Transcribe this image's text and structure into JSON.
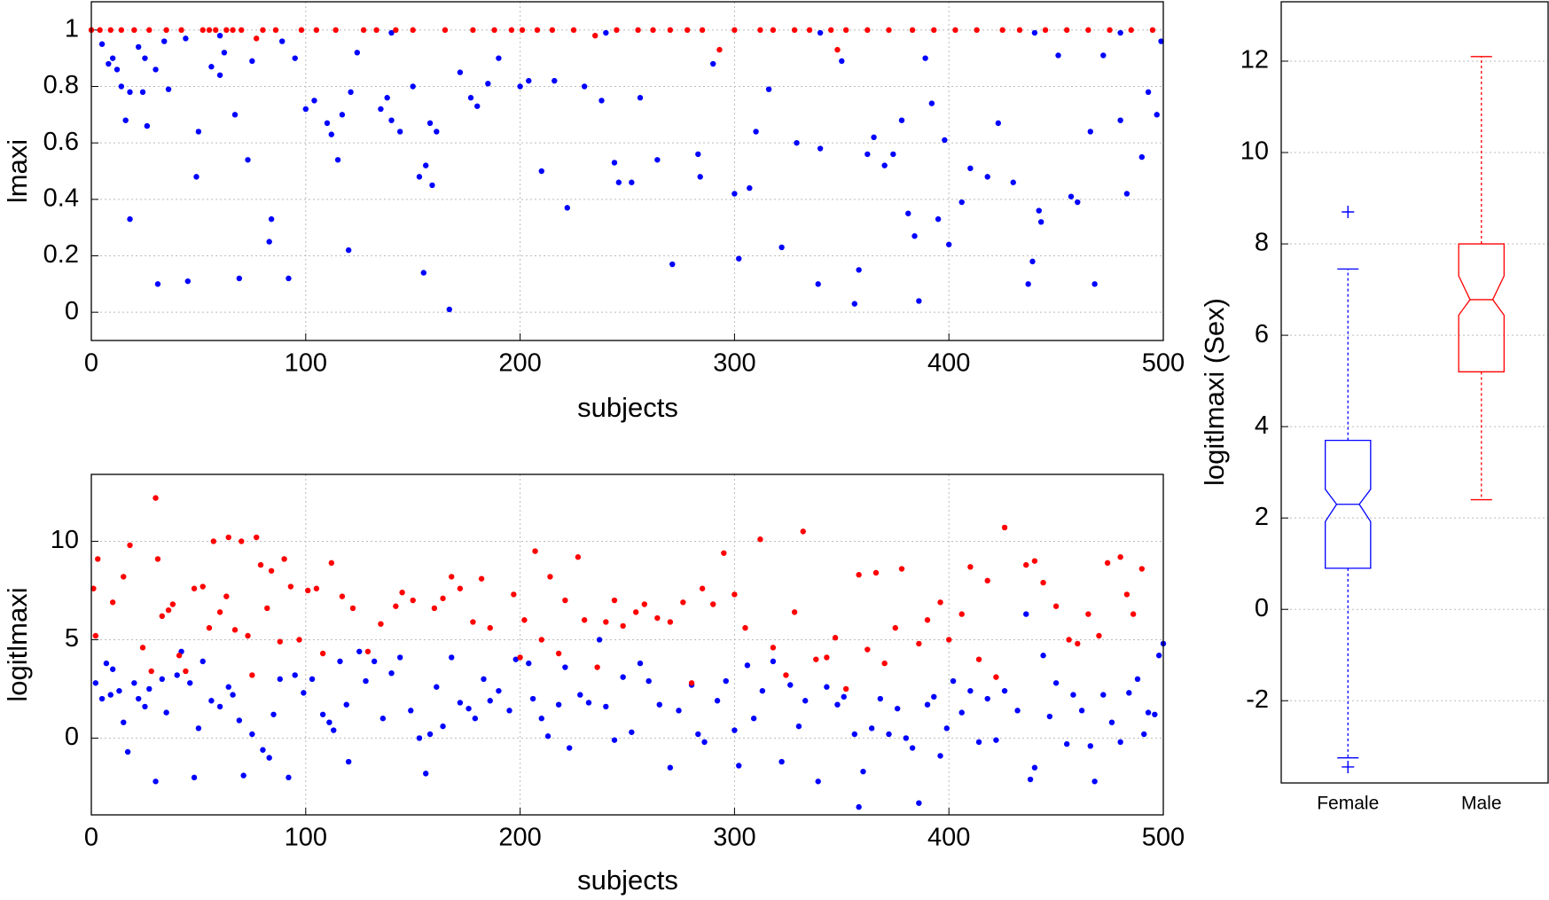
{
  "chart_data": [
    {
      "type": "scatter",
      "xlabel": "subjects",
      "ylabel": "lmaxi",
      "xlim": [
        0,
        500
      ],
      "ylim": [
        -0.1,
        1.1
      ],
      "xticks": [
        0,
        100,
        200,
        300,
        400,
        500
      ],
      "yticks": [
        0,
        0.2,
        0.4,
        0.6,
        0.8,
        1
      ],
      "grid": true,
      "series": [
        {
          "color": "#0000ff",
          "x": [
            5,
            8,
            10,
            12,
            14,
            16,
            18,
            18,
            22,
            24,
            25,
            26,
            30,
            31,
            34,
            36,
            44,
            45,
            49,
            50,
            56,
            60,
            62,
            67,
            69,
            73,
            75,
            83,
            84,
            89,
            92,
            95,
            100,
            104,
            110,
            112,
            115,
            117,
            120,
            121,
            124,
            135,
            138,
            140,
            144,
            150,
            153,
            155,
            156,
            158,
            159,
            161,
            167,
            172,
            177,
            180,
            185,
            190,
            200,
            204,
            210,
            216,
            222,
            230,
            238,
            244,
            246,
            252,
            256,
            264,
            271,
            283,
            284,
            290,
            300,
            302,
            307,
            310,
            316,
            322,
            329,
            339,
            340,
            350,
            356,
            358,
            362,
            365,
            370,
            374,
            378,
            381,
            384,
            386,
            389,
            392,
            395,
            398,
            400,
            406,
            410,
            418,
            423,
            430,
            437,
            439,
            442,
            443,
            451,
            457,
            460,
            466,
            468,
            472,
            480,
            483,
            490,
            493,
            497,
            499,
            60,
            140,
            240,
            340,
            440,
            480
          ],
          "values": [
            0.95,
            0.88,
            0.9,
            0.86,
            0.8,
            0.68,
            0.78,
            0.33,
            0.94,
            0.78,
            0.9,
            0.66,
            0.86,
            0.1,
            0.96,
            0.79,
            0.97,
            0.11,
            0.48,
            0.64,
            0.87,
            0.84,
            0.92,
            0.7,
            0.12,
            0.54,
            0.89,
            0.25,
            0.33,
            0.96,
            0.12,
            0.9,
            0.72,
            0.75,
            0.67,
            0.63,
            0.54,
            0.7,
            0.22,
            0.78,
            0.92,
            0.72,
            0.76,
            0.68,
            0.64,
            0.8,
            0.48,
            0.14,
            0.52,
            0.67,
            0.45,
            0.64,
            0.01,
            0.85,
            0.76,
            0.73,
            0.81,
            0.9,
            0.8,
            0.82,
            0.5,
            0.82,
            0.37,
            0.8,
            0.75,
            0.53,
            0.46,
            0.46,
            0.76,
            0.54,
            0.17,
            0.56,
            0.48,
            0.88,
            0.42,
            0.19,
            0.44,
            0.64,
            0.79,
            0.23,
            0.6,
            0.1,
            0.58,
            0.89,
            0.03,
            0.15,
            0.56,
            0.62,
            0.52,
            0.56,
            0.68,
            0.35,
            0.27,
            0.04,
            0.9,
            0.74,
            0.33,
            0.61,
            0.24,
            0.39,
            0.51,
            0.48,
            0.67,
            0.46,
            0.1,
            0.18,
            0.36,
            0.32,
            0.91,
            0.41,
            0.39,
            0.64,
            0.1,
            0.91,
            0.68,
            0.42,
            0.55,
            0.78,
            0.7,
            0.96,
            0.98,
            0.99,
            0.99,
            0.99,
            0.99,
            0.99
          ]
        },
        {
          "color": "#ff0000",
          "x": [
            0,
            4,
            9,
            14,
            20,
            27,
            35,
            42,
            52,
            55,
            58,
            63,
            66,
            70,
            77,
            80,
            86,
            98,
            105,
            114,
            127,
            133,
            142,
            150,
            165,
            178,
            188,
            196,
            201,
            208,
            215,
            225,
            235,
            245,
            255,
            262,
            270,
            278,
            285,
            293,
            300,
            312,
            318,
            328,
            335,
            345,
            348,
            352,
            362,
            372,
            383,
            393,
            403,
            413,
            425,
            433,
            445,
            455,
            465,
            475,
            485,
            495
          ],
          "values": [
            1,
            1,
            1,
            1,
            1,
            1,
            1,
            1,
            1,
            1,
            1,
            1,
            1,
            1,
            0.97,
            1,
            1,
            1,
            1,
            1,
            1,
            1,
            1,
            1,
            1,
            1,
            1,
            1,
            1,
            1,
            1,
            1,
            0.98,
            1,
            1,
            1,
            1,
            1,
            1,
            0.93,
            1,
            1,
            1,
            1,
            1,
            1,
            0.93,
            1,
            1,
            1,
            1,
            1,
            1,
            1,
            1,
            1,
            1,
            1,
            1,
            1,
            1,
            1
          ]
        }
      ]
    },
    {
      "type": "scatter",
      "xlabel": "subjects",
      "ylabel": "logitlmaxi",
      "xlim": [
        0,
        500
      ],
      "ylim": [
        -3.9,
        13.4
      ],
      "xticks": [
        0,
        100,
        200,
        300,
        400,
        500
      ],
      "yticks": [
        0,
        5,
        10
      ],
      "grid": true,
      "series": [
        {
          "color": "#0000ff",
          "x": [
            2,
            5,
            7,
            9,
            10,
            13,
            15,
            17,
            20,
            22,
            25,
            27,
            30,
            33,
            35,
            40,
            42,
            46,
            48,
            50,
            52,
            56,
            60,
            64,
            66,
            69,
            71,
            75,
            80,
            83,
            85,
            88,
            92,
            95,
            99,
            103,
            108,
            111,
            113,
            116,
            119,
            120,
            125,
            128,
            132,
            136,
            140,
            144,
            149,
            153,
            156,
            158,
            161,
            164,
            168,
            172,
            176,
            179,
            183,
            186,
            190,
            195,
            198,
            204,
            206,
            210,
            213,
            218,
            221,
            223,
            228,
            232,
            237,
            240,
            244,
            248,
            252,
            256,
            260,
            265,
            270,
            274,
            280,
            283,
            286,
            292,
            296,
            300,
            302,
            306,
            309,
            313,
            318,
            322,
            326,
            330,
            333,
            339,
            343,
            348,
            351,
            356,
            358,
            360,
            364,
            368,
            372,
            376,
            380,
            383,
            386,
            390,
            393,
            396,
            399,
            402,
            406,
            410,
            414,
            418,
            422,
            426,
            432,
            436,
            438,
            440,
            444,
            447,
            450,
            455,
            458,
            462,
            466,
            468,
            472,
            476,
            480,
            484,
            488,
            491,
            493,
            496,
            498,
            500
          ],
          "values": [
            2.8,
            2,
            3.8,
            2.2,
            3.5,
            2.4,
            0.8,
            -0.7,
            2.8,
            2,
            1.6,
            2.5,
            -2.2,
            3,
            1.3,
            3.2,
            4.4,
            2.8,
            -2,
            0.5,
            3.9,
            1.9,
            1.6,
            2.6,
            2.2,
            0.9,
            -1.9,
            0.2,
            -0.6,
            -1,
            1.2,
            3,
            -2,
            3.2,
            2.3,
            3,
            1.2,
            0.8,
            0.4,
            3.9,
            1.7,
            -1.2,
            4.4,
            2.9,
            3.9,
            1,
            3.3,
            4.1,
            1.4,
            0,
            -1.8,
            0.2,
            2.6,
            0.6,
            4.1,
            1.8,
            1.5,
            1,
            3,
            1.9,
            2.4,
            1.4,
            4,
            3.8,
            2,
            1,
            0.1,
            1.7,
            3.6,
            -0.5,
            2.2,
            1.8,
            5,
            1.6,
            -0.1,
            3.1,
            0.3,
            3.8,
            2.9,
            1.7,
            -1.5,
            1.4,
            2.7,
            0.2,
            -0.2,
            1.9,
            2.9,
            0.4,
            -1.4,
            3.7,
            1,
            2.4,
            3.9,
            -1.2,
            2.7,
            0.6,
            1.9,
            -2.2,
            2.6,
            1.7,
            2.1,
            0.2,
            -3.5,
            -1.7,
            0.5,
            2,
            0.2,
            1.5,
            0,
            -0.5,
            -3.3,
            1.7,
            2.1,
            -0.9,
            0.5,
            2.9,
            1.3,
            2.4,
            -0.2,
            2,
            -0.1,
            2.4,
            1.4,
            6.3,
            -2.1,
            -1.5,
            4.2,
            1.1,
            2.8,
            -0.3,
            2.2,
            1.4,
            -0.4,
            -2.2,
            2.2,
            0.8,
            -0.2,
            2.3,
            3,
            0.2,
            1.3,
            1.2,
            4.2,
            4.8
          ]
        },
        {
          "color": "#ff0000",
          "x": [
            1,
            2,
            3,
            10,
            15,
            18,
            24,
            28,
            30,
            31,
            33,
            36,
            38,
            41,
            44,
            48,
            52,
            55,
            57,
            60,
            63,
            64,
            67,
            70,
            73,
            75,
            77,
            79,
            82,
            84,
            88,
            90,
            93,
            97,
            101,
            105,
            108,
            112,
            117,
            122,
            129,
            135,
            142,
            145,
            150,
            160,
            164,
            168,
            172,
            178,
            182,
            186,
            197,
            200,
            202,
            207,
            210,
            214,
            218,
            221,
            227,
            230,
            236,
            240,
            244,
            248,
            254,
            258,
            264,
            270,
            276,
            280,
            285,
            290,
            295,
            300,
            305,
            312,
            318,
            324,
            328,
            332,
            338,
            343,
            347,
            352,
            358,
            362,
            366,
            370,
            375,
            378,
            386,
            390,
            396,
            400,
            406,
            410,
            414,
            418,
            422,
            426,
            436,
            440,
            444,
            450,
            456,
            460,
            465,
            470,
            474,
            480,
            483,
            486,
            490
          ],
          "values": [
            7.6,
            5.2,
            9.1,
            6.9,
            8.2,
            9.8,
            4.6,
            3.4,
            12.2,
            9.1,
            6.2,
            6.5,
            6.8,
            4.2,
            3.4,
            7.6,
            7.7,
            5.6,
            10,
            6.4,
            7.2,
            10.2,
            5.5,
            10,
            5.2,
            3.2,
            10.2,
            8.8,
            6.6,
            8.5,
            4.9,
            9.1,
            7.7,
            5,
            7.5,
            7.6,
            4.3,
            8.9,
            7.2,
            6.6,
            4.4,
            5.8,
            6.7,
            7.4,
            7,
            6.6,
            7.1,
            8.2,
            7.6,
            5.9,
            8.1,
            5.6,
            7.3,
            4.1,
            6,
            9.5,
            5,
            8.2,
            4.3,
            7,
            9.2,
            6,
            3.6,
            5.9,
            7,
            5.7,
            6.4,
            6.8,
            6.1,
            5.9,
            6.9,
            2.8,
            7.6,
            6.8,
            9.4,
            7.3,
            5.6,
            10.1,
            4.6,
            3.2,
            6.4,
            10.5,
            4,
            4.1,
            5.1,
            2.5,
            8.3,
            4.5,
            8.4,
            3.8,
            5.6,
            8.6,
            4.8,
            6,
            6.9,
            5,
            6.3,
            8.7,
            4,
            8,
            3.1,
            10.7,
            8.8,
            9,
            7.9,
            6.7,
            5,
            4.8,
            6.3,
            5.2,
            8.9,
            9.2,
            7.3,
            6.3,
            8.6
          ]
        }
      ]
    },
    {
      "type": "box",
      "ylabel": "logitlmaxi (Sex)",
      "categories": [
        "Female",
        "Male"
      ],
      "ylim": [
        -3.8,
        13.3
      ],
      "yticks": [
        -2,
        0,
        2,
        4,
        6,
        8,
        10,
        12
      ],
      "grid": true,
      "boxes": [
        {
          "color": "#0000ff",
          "whisker_low": -3.25,
          "q1": 0.9,
          "notch_low": 1.92,
          "median": 2.3,
          "notch_high": 2.63,
          "q3": 3.7,
          "whisker_high": 7.45,
          "outliers": [
            8.7,
            -3.45
          ]
        },
        {
          "color": "#ff0000",
          "whisker_low": 2.4,
          "q1": 5.2,
          "notch_low": 6.44,
          "median": 6.78,
          "notch_high": 7.3,
          "q3": 8.0,
          "whisker_high": 12.1,
          "outliers": []
        }
      ]
    }
  ]
}
